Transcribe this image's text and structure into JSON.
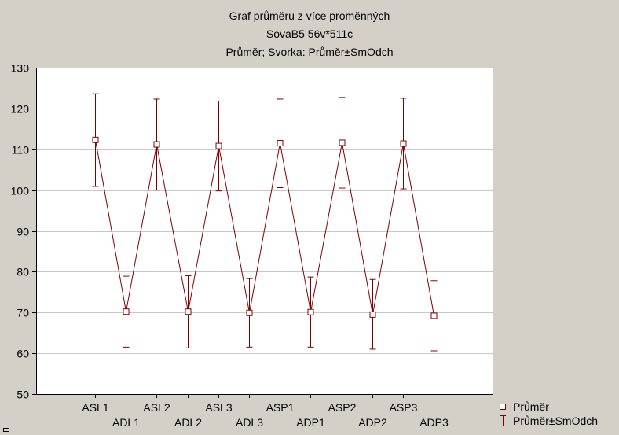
{
  "chart_data": {
    "type": "line",
    "title_lines": [
      "Graf průměru z více proměnných",
      "SovaB5 56v*511c",
      "Průměr; Svorka: Průměr±SmOdch"
    ],
    "categories": [
      "ASL1",
      "ADL1",
      "ASL2",
      "ADL2",
      "ASL3",
      "ADL3",
      "ASP1",
      "ADP1",
      "ASP2",
      "ADP2",
      "ASP3",
      "ADP3"
    ],
    "series": [
      {
        "name": "Průměr",
        "values": [
          112.3,
          70.2,
          111.2,
          70.2,
          110.8,
          69.9,
          111.5,
          70.1,
          111.6,
          69.5,
          111.4,
          69.2
        ]
      }
    ],
    "error_bars": {
      "name": "Průměr±SmOdch",
      "upper": [
        123.6,
        78.9,
        122.3,
        79.0,
        121.8,
        78.3,
        122.3,
        78.7,
        122.7,
        78.1,
        122.5,
        77.8
      ],
      "lower": [
        100.9,
        61.5,
        100.0,
        61.3,
        99.8,
        61.5,
        100.6,
        61.5,
        100.5,
        61.0,
        100.3,
        60.6
      ]
    },
    "yticks": [
      50,
      60,
      70,
      80,
      90,
      100,
      110,
      120,
      130
    ],
    "ylim": [
      50,
      130
    ],
    "grid": true,
    "legend": "bottom-right",
    "colors": {
      "line": "#800000",
      "plot_bg": "#FFFFFF",
      "gridline": "#C8C8C8",
      "frame": "#000000",
      "outer_bg": "#D4D0C8"
    }
  }
}
